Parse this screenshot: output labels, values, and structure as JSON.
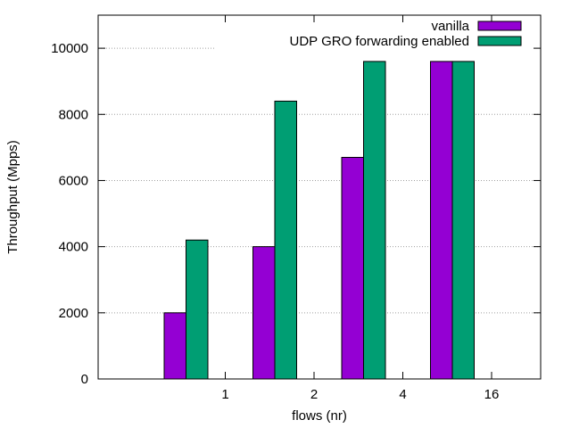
{
  "chart_data": {
    "type": "bar",
    "categories": [
      "1",
      "2",
      "4",
      "16"
    ],
    "series": [
      {
        "name": "vanilla",
        "values": [
          2000,
          4000,
          6700,
          9600
        ],
        "color": "#9400d3"
      },
      {
        "name": "UDP GRO forwarding enabled",
        "values": [
          4200,
          8400,
          9600,
          9600
        ],
        "color": "#009e73"
      }
    ],
    "title": "",
    "xlabel": "flows (nr)",
    "ylabel": "Throughput (Mpps)",
    "ylim": [
      0,
      11000
    ],
    "yticks": [
      0,
      2000,
      4000,
      6000,
      8000,
      10000
    ],
    "grid": true,
    "legend_position": "top-right"
  }
}
